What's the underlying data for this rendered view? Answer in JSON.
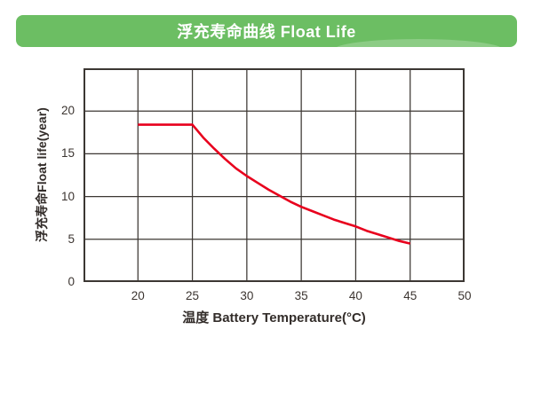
{
  "header": {
    "title": "浮充寿命曲线 Float Life",
    "background_color": "#6cbe63",
    "text_color": "#ffffff"
  },
  "chart_data": {
    "type": "line",
    "title": "浮充寿命曲线 Float Life",
    "xlabel": "温度 Battery Temperature(°C)",
    "ylabel": "浮充寿命Float life(year)",
    "xlim": [
      15,
      50
    ],
    "ylim": [
      0,
      25
    ],
    "x_ticks": [
      20,
      25,
      30,
      35,
      40,
      45,
      50
    ],
    "y_ticks": [
      0,
      5,
      10,
      15,
      20
    ],
    "grid": true,
    "legend": "none",
    "grid_color": "#3c3733",
    "line_color": "#e8001d",
    "series": [
      {
        "name": "Float Life",
        "x": [
          20,
          25,
          26,
          27,
          28,
          29,
          30,
          31,
          32,
          33,
          34,
          35,
          36,
          37,
          38,
          39,
          40,
          41,
          42,
          43,
          44,
          45
        ],
        "y": [
          18.4,
          18.4,
          16.9,
          15.6,
          14.4,
          13.3,
          12.4,
          11.6,
          10.8,
          10.1,
          9.4,
          8.8,
          8.3,
          7.8,
          7.3,
          6.9,
          6.5,
          6.0,
          5.6,
          5.2,
          4.8,
          4.5
        ]
      }
    ]
  }
}
